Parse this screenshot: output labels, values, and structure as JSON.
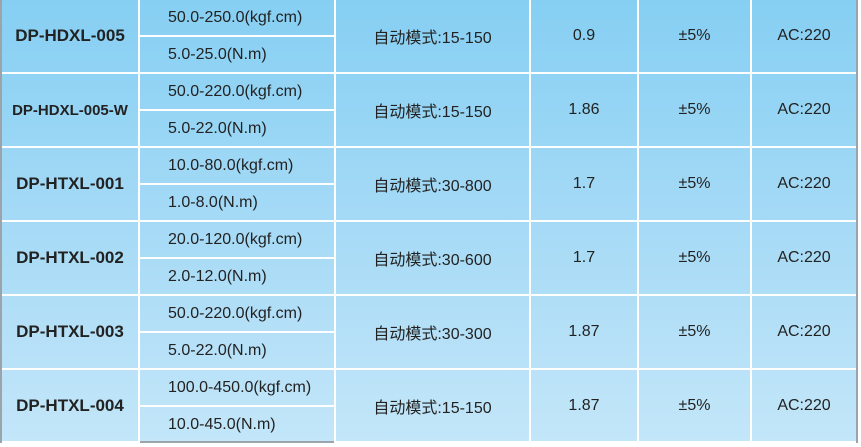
{
  "rows": [
    {
      "model": "DP-HDXL-005",
      "range_kgf": "50.0-250.0(kgf.cm)",
      "range_nm": "5.0-25.0(N.m)",
      "mode": "自动模式:15-150",
      "value": "0.9",
      "accuracy": "±5%",
      "power": "AC:220"
    },
    {
      "model": "DP-HDXL-005-W",
      "range_kgf": "50.0-220.0(kgf.cm)",
      "range_nm": "5.0-22.0(N.m)",
      "mode": "自动模式:15-150",
      "value": "1.86",
      "accuracy": "±5%",
      "power": "AC:220"
    },
    {
      "model": "DP-HTXL-001",
      "range_kgf": "10.0-80.0(kgf.cm)",
      "range_nm": "1.0-8.0(N.m)",
      "mode": "自动模式:30-800",
      "value": "1.7",
      "accuracy": "±5%",
      "power": "AC:220"
    },
    {
      "model": "DP-HTXL-002",
      "range_kgf": "20.0-120.0(kgf.cm)",
      "range_nm": "2.0-12.0(N.m)",
      "mode": "自动模式:30-600",
      "value": "1.7",
      "accuracy": "±5%",
      "power": "AC:220"
    },
    {
      "model": "DP-HTXL-003",
      "range_kgf": "50.0-220.0(kgf.cm)",
      "range_nm": "5.0-22.0(N.m)",
      "mode": "自动模式:30-300",
      "value": "1.87",
      "accuracy": "±5%",
      "power": "AC:220"
    },
    {
      "model": "DP-HTXL-004",
      "range_kgf": "100.0-450.0(kgf.cm)",
      "range_nm": "10.0-45.0(N.m)",
      "mode": "自动模式:15-150",
      "value": "1.87",
      "accuracy": "±5%",
      "power": "AC:220"
    }
  ]
}
